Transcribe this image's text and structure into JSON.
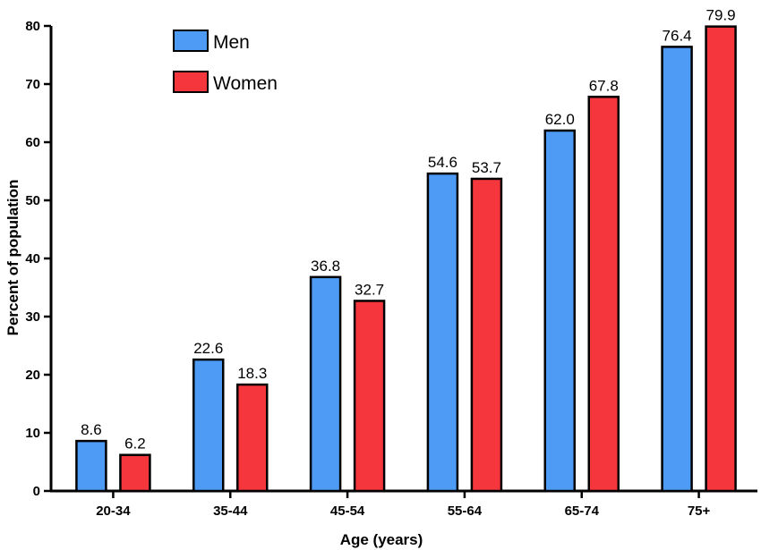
{
  "chart_data": {
    "type": "bar",
    "title": "",
    "xlabel": "Age (years)",
    "ylabel": "Percent of population",
    "ylim": [
      0,
      80
    ],
    "yticks": [
      0,
      10,
      20,
      30,
      40,
      50,
      60,
      70,
      80
    ],
    "categories": [
      "20-34",
      "35-44",
      "45-54",
      "55-64",
      "65-74",
      "75+"
    ],
    "series": [
      {
        "name": "Men",
        "color": "#4d9bf5",
        "values": [
          8.6,
          22.6,
          36.8,
          54.6,
          62.0,
          76.4
        ]
      },
      {
        "name": "Women",
        "color": "#f5373d",
        "values": [
          6.2,
          18.3,
          32.7,
          53.7,
          67.8,
          79.9
        ]
      }
    ],
    "legend_position": "top-left",
    "grid": false
  }
}
